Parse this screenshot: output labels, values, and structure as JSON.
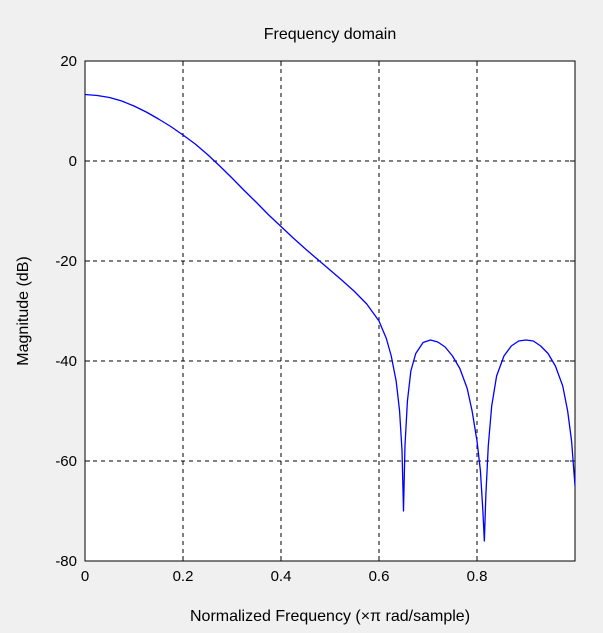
{
  "chart_data": {
    "type": "line",
    "title": "Frequency domain",
    "xlabel": "Normalized Frequency  (×π rad/sample)",
    "ylabel": "Magnitude (dB)",
    "xlim": [
      0,
      1
    ],
    "ylim": [
      -80,
      20
    ],
    "xticks": [
      "0",
      "0.2",
      "0.4",
      "0.6",
      "0.8"
    ],
    "xtick_values": [
      0,
      0.2,
      0.4,
      0.6,
      0.8
    ],
    "yticks": [
      "20",
      "0",
      "-20",
      "-40",
      "-60",
      "-80"
    ],
    "ytick_values": [
      20,
      0,
      -20,
      -40,
      -60,
      -80
    ],
    "grid": true,
    "line_color": "#0000ff",
    "series": [
      {
        "x": [
          0,
          0.025,
          0.05,
          0.075,
          0.1,
          0.125,
          0.15,
          0.175,
          0.2,
          0.225,
          0.25,
          0.275,
          0.3,
          0.325,
          0.35,
          0.375,
          0.4,
          0.425,
          0.45,
          0.475,
          0.5,
          0.525,
          0.55,
          0.575,
          0.6,
          0.615,
          0.625,
          0.635,
          0.642,
          0.647,
          0.65,
          0.653,
          0.658,
          0.665,
          0.675,
          0.69,
          0.705,
          0.72,
          0.735,
          0.75,
          0.765,
          0.78,
          0.79,
          0.8,
          0.807,
          0.812,
          0.815,
          0.818,
          0.823,
          0.83,
          0.84,
          0.855,
          0.87,
          0.885,
          0.9,
          0.915,
          0.93,
          0.945,
          0.96,
          0.975,
          0.985,
          0.993,
          1.0
        ],
        "y": [
          13.3,
          13.1,
          12.7,
          12.0,
          11.0,
          9.8,
          8.4,
          6.9,
          5.2,
          3.4,
          1.3,
          -1.0,
          -3.4,
          -5.9,
          -8.3,
          -10.8,
          -13.1,
          -15.4,
          -17.6,
          -19.7,
          -21.8,
          -23.9,
          -26.1,
          -28.6,
          -32.0,
          -35.5,
          -39.0,
          -44.0,
          -50.0,
          -58.0,
          -70.0,
          -57.0,
          -48.0,
          -42.0,
          -38.5,
          -36.3,
          -35.8,
          -36.2,
          -37.2,
          -39.0,
          -41.5,
          -45.5,
          -50.0,
          -56.0,
          -62.0,
          -70.0,
          -76.0,
          -67.0,
          -57.0,
          -49.0,
          -43.0,
          -39.0,
          -37.0,
          -36.0,
          -35.8,
          -36.0,
          -37.0,
          -38.5,
          -41.0,
          -45.0,
          -50.0,
          -56.0,
          -65.0
        ]
      }
    ]
  }
}
